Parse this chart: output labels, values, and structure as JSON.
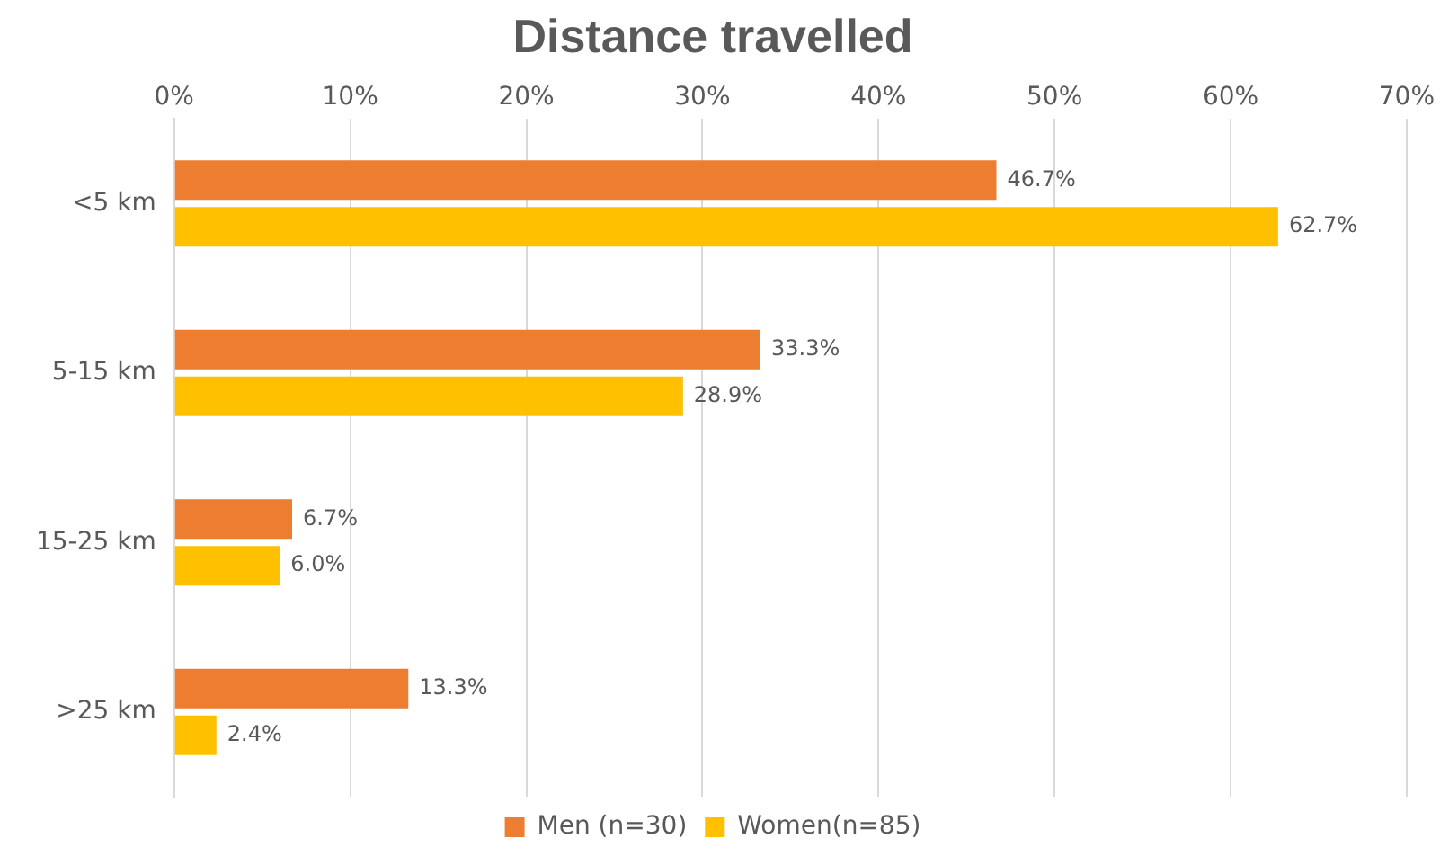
{
  "chart_data": {
    "type": "bar",
    "orientation": "horizontal",
    "title": "Distance travelled",
    "categories": [
      "<5 km",
      "5-15 km",
      "15-25 km",
      ">25 km"
    ],
    "series": [
      {
        "name": "Men (n=30)",
        "color": "#ed7d31",
        "values": [
          46.7,
          33.3,
          6.7,
          13.3
        ],
        "value_labels": [
          "46.7%",
          "33.3%",
          "6.7%",
          "13.3%"
        ]
      },
      {
        "name": "Women(n=85)",
        "color": "#ffc000",
        "values": [
          62.7,
          28.9,
          6.0,
          2.4
        ],
        "value_labels": [
          "62.7%",
          "28.9%",
          "6.0%",
          "2.4%"
        ]
      }
    ],
    "xlim": [
      0,
      70
    ],
    "xticks": [
      {
        "value": 0,
        "label": "0%"
      },
      {
        "value": 10,
        "label": "10%"
      },
      {
        "value": 20,
        "label": "20%"
      },
      {
        "value": 30,
        "label": "30%"
      },
      {
        "value": 40,
        "label": "40%"
      },
      {
        "value": 50,
        "label": "50%"
      },
      {
        "value": 60,
        "label": "60%"
      },
      {
        "value": 70,
        "label": "70%"
      }
    ],
    "grid": "x",
    "legend": "bottom"
  }
}
